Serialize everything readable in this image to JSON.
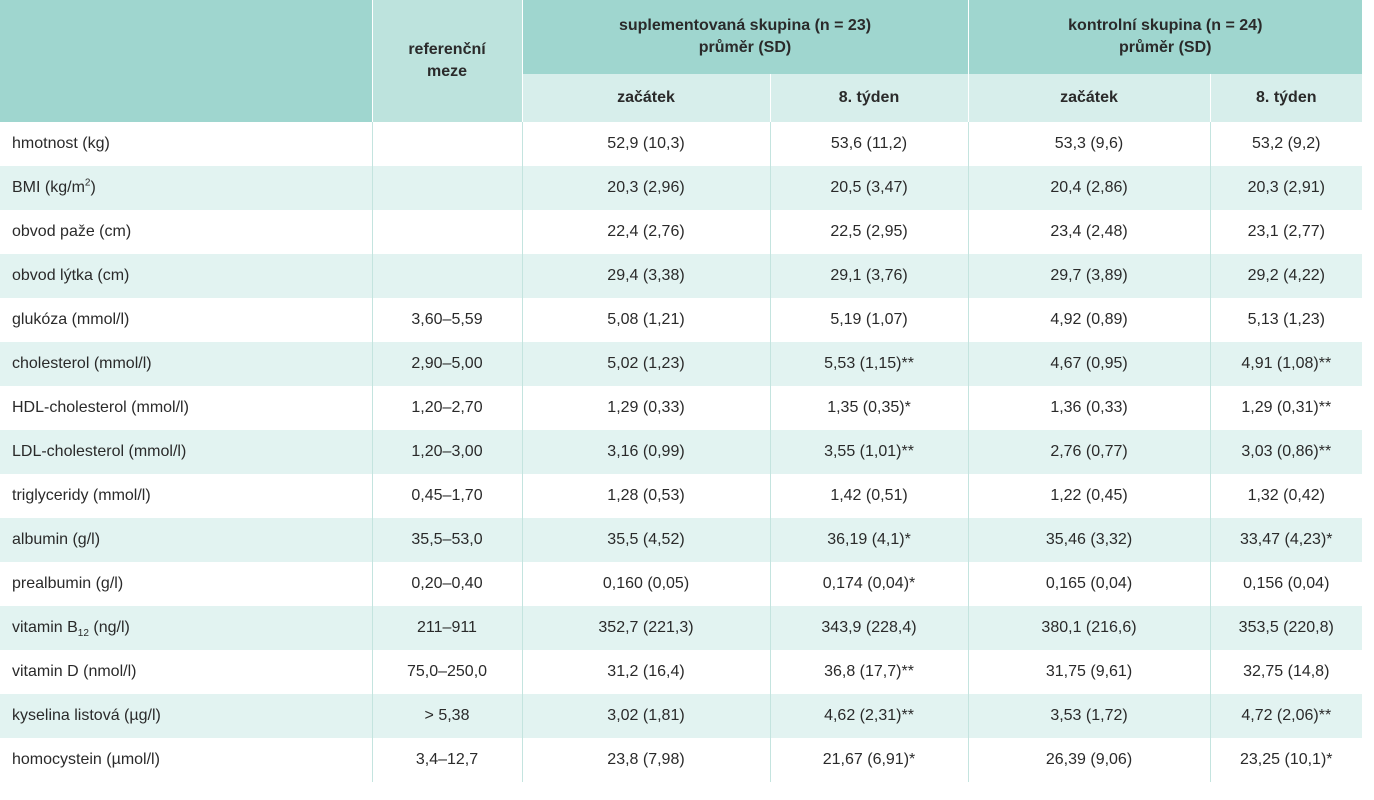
{
  "header": {
    "ref_line1": "referenční",
    "ref_line2": "meze",
    "group1_line1": "suplementovaná skupina (n = 23)",
    "group1_line2": "průměr (SD)",
    "group2_line1": "kontrolní skupina (n = 24)",
    "group2_line2": "průměr (SD)",
    "g1_start": "začátek",
    "g1_week8": "8. týden",
    "g2_start": "začátek",
    "g2_week8": "8. týden"
  },
  "rows": [
    {
      "label": "hmotnost (kg)",
      "ref": "",
      "g1s": "52,9 (10,3)",
      "g1w": "53,6 (11,2)",
      "g2s": "53,3 (9,6)",
      "g2w": "53,2 (9,2)"
    },
    {
      "label_pre": "BMI (kg/m",
      "label_sup": "2",
      "label_post": ")",
      "ref": "",
      "g1s": "20,3 (2,96)",
      "g1w": "20,5 (3,47)",
      "g2s": "20,4 (2,86)",
      "g2w": "20,3 (2,91)"
    },
    {
      "label": "obvod paže (cm)",
      "ref": "",
      "g1s": "22,4 (2,76)",
      "g1w": "22,5 (2,95)",
      "g2s": "23,4 (2,48)",
      "g2w": "23,1 (2,77)"
    },
    {
      "label": "obvod lýtka (cm)",
      "ref": "",
      "g1s": "29,4 (3,38)",
      "g1w": "29,1 (3,76)",
      "g2s": "29,7 (3,89)",
      "g2w": "29,2 (4,22)"
    },
    {
      "label": "glukóza (mmol/l)",
      "ref": "3,60–5,59",
      "g1s": "5,08 (1,21)",
      "g1w": "5,19 (1,07)",
      "g2s": "4,92 (0,89)",
      "g2w": "5,13 (1,23)"
    },
    {
      "label": "cholesterol (mmol/l)",
      "ref": "2,90–5,00",
      "g1s": "5,02 (1,23)",
      "g1w": "5,53 (1,15)**",
      "g2s": "4,67 (0,95)",
      "g2w": "4,91 (1,08)**"
    },
    {
      "label": "HDL-cholesterol (mmol/l)",
      "ref": "1,20–2,70",
      "g1s": "1,29 (0,33)",
      "g1w": "1,35 (0,35)*",
      "g2s": "1,36 (0,33)",
      "g2w": "1,29 (0,31)**"
    },
    {
      "label": "LDL-cholesterol (mmol/l)",
      "ref": "1,20–3,00",
      "g1s": "3,16 (0,99)",
      "g1w": "3,55 (1,01)**",
      "g2s": "2,76 (0,77)",
      "g2w": "3,03 (0,86)**"
    },
    {
      "label": "triglyceridy (mmol/l)",
      "ref": "0,45–1,70",
      "g1s": "1,28 (0,53)",
      "g1w": "1,42 (0,51)",
      "g2s": "1,22 (0,45)",
      "g2w": "1,32 (0,42)"
    },
    {
      "label": "albumin (g/l)",
      "ref": "35,5–53,0",
      "g1s": "35,5 (4,52)",
      "g1w": "36,19 (4,1)*",
      "g2s": "35,46 (3,32)",
      "g2w": "33,47 (4,23)*"
    },
    {
      "label": "prealbumin (g/l)",
      "ref": "0,20–0,40",
      "g1s": "0,160 (0,05)",
      "g1w": "0,174 (0,04)*",
      "g2s": "0,165 (0,04)",
      "g2w": "0,156 (0,04)"
    },
    {
      "label_pre": "vitamin B",
      "label_sub": "12",
      "label_post": " (ng/l)",
      "ref": "211–911",
      "g1s": "352,7 (221,3)",
      "g1w": "343,9 (228,4)",
      "g2s": "380,1 (216,6)",
      "g2w": "353,5 (220,8)"
    },
    {
      "label": "vitamin D (nmol/l)",
      "ref": "75,0–250,0",
      "g1s": "31,2 (16,4)",
      "g1w": "36,8 (17,7)**",
      "g2s": "31,75 (9,61)",
      "g2w": "32,75 (14,8)"
    },
    {
      "label": "kyselina listová (µg/l)",
      "ref": "> 5,38",
      "g1s": "3,02 (1,81)",
      "g1w": "4,62 (2,31)**",
      "g2s": "3,53 (1,72)",
      "g2w": "4,72 (2,06)**"
    },
    {
      "label": "homocystein (µmol/l)",
      "ref": "3,4–12,7",
      "g1s": "23,8 (7,98)",
      "g1w": "21,67 (6,91)*",
      "g2s": "26,39 (9,06)",
      "g2w": "23,25 (10,1)*"
    }
  ]
}
